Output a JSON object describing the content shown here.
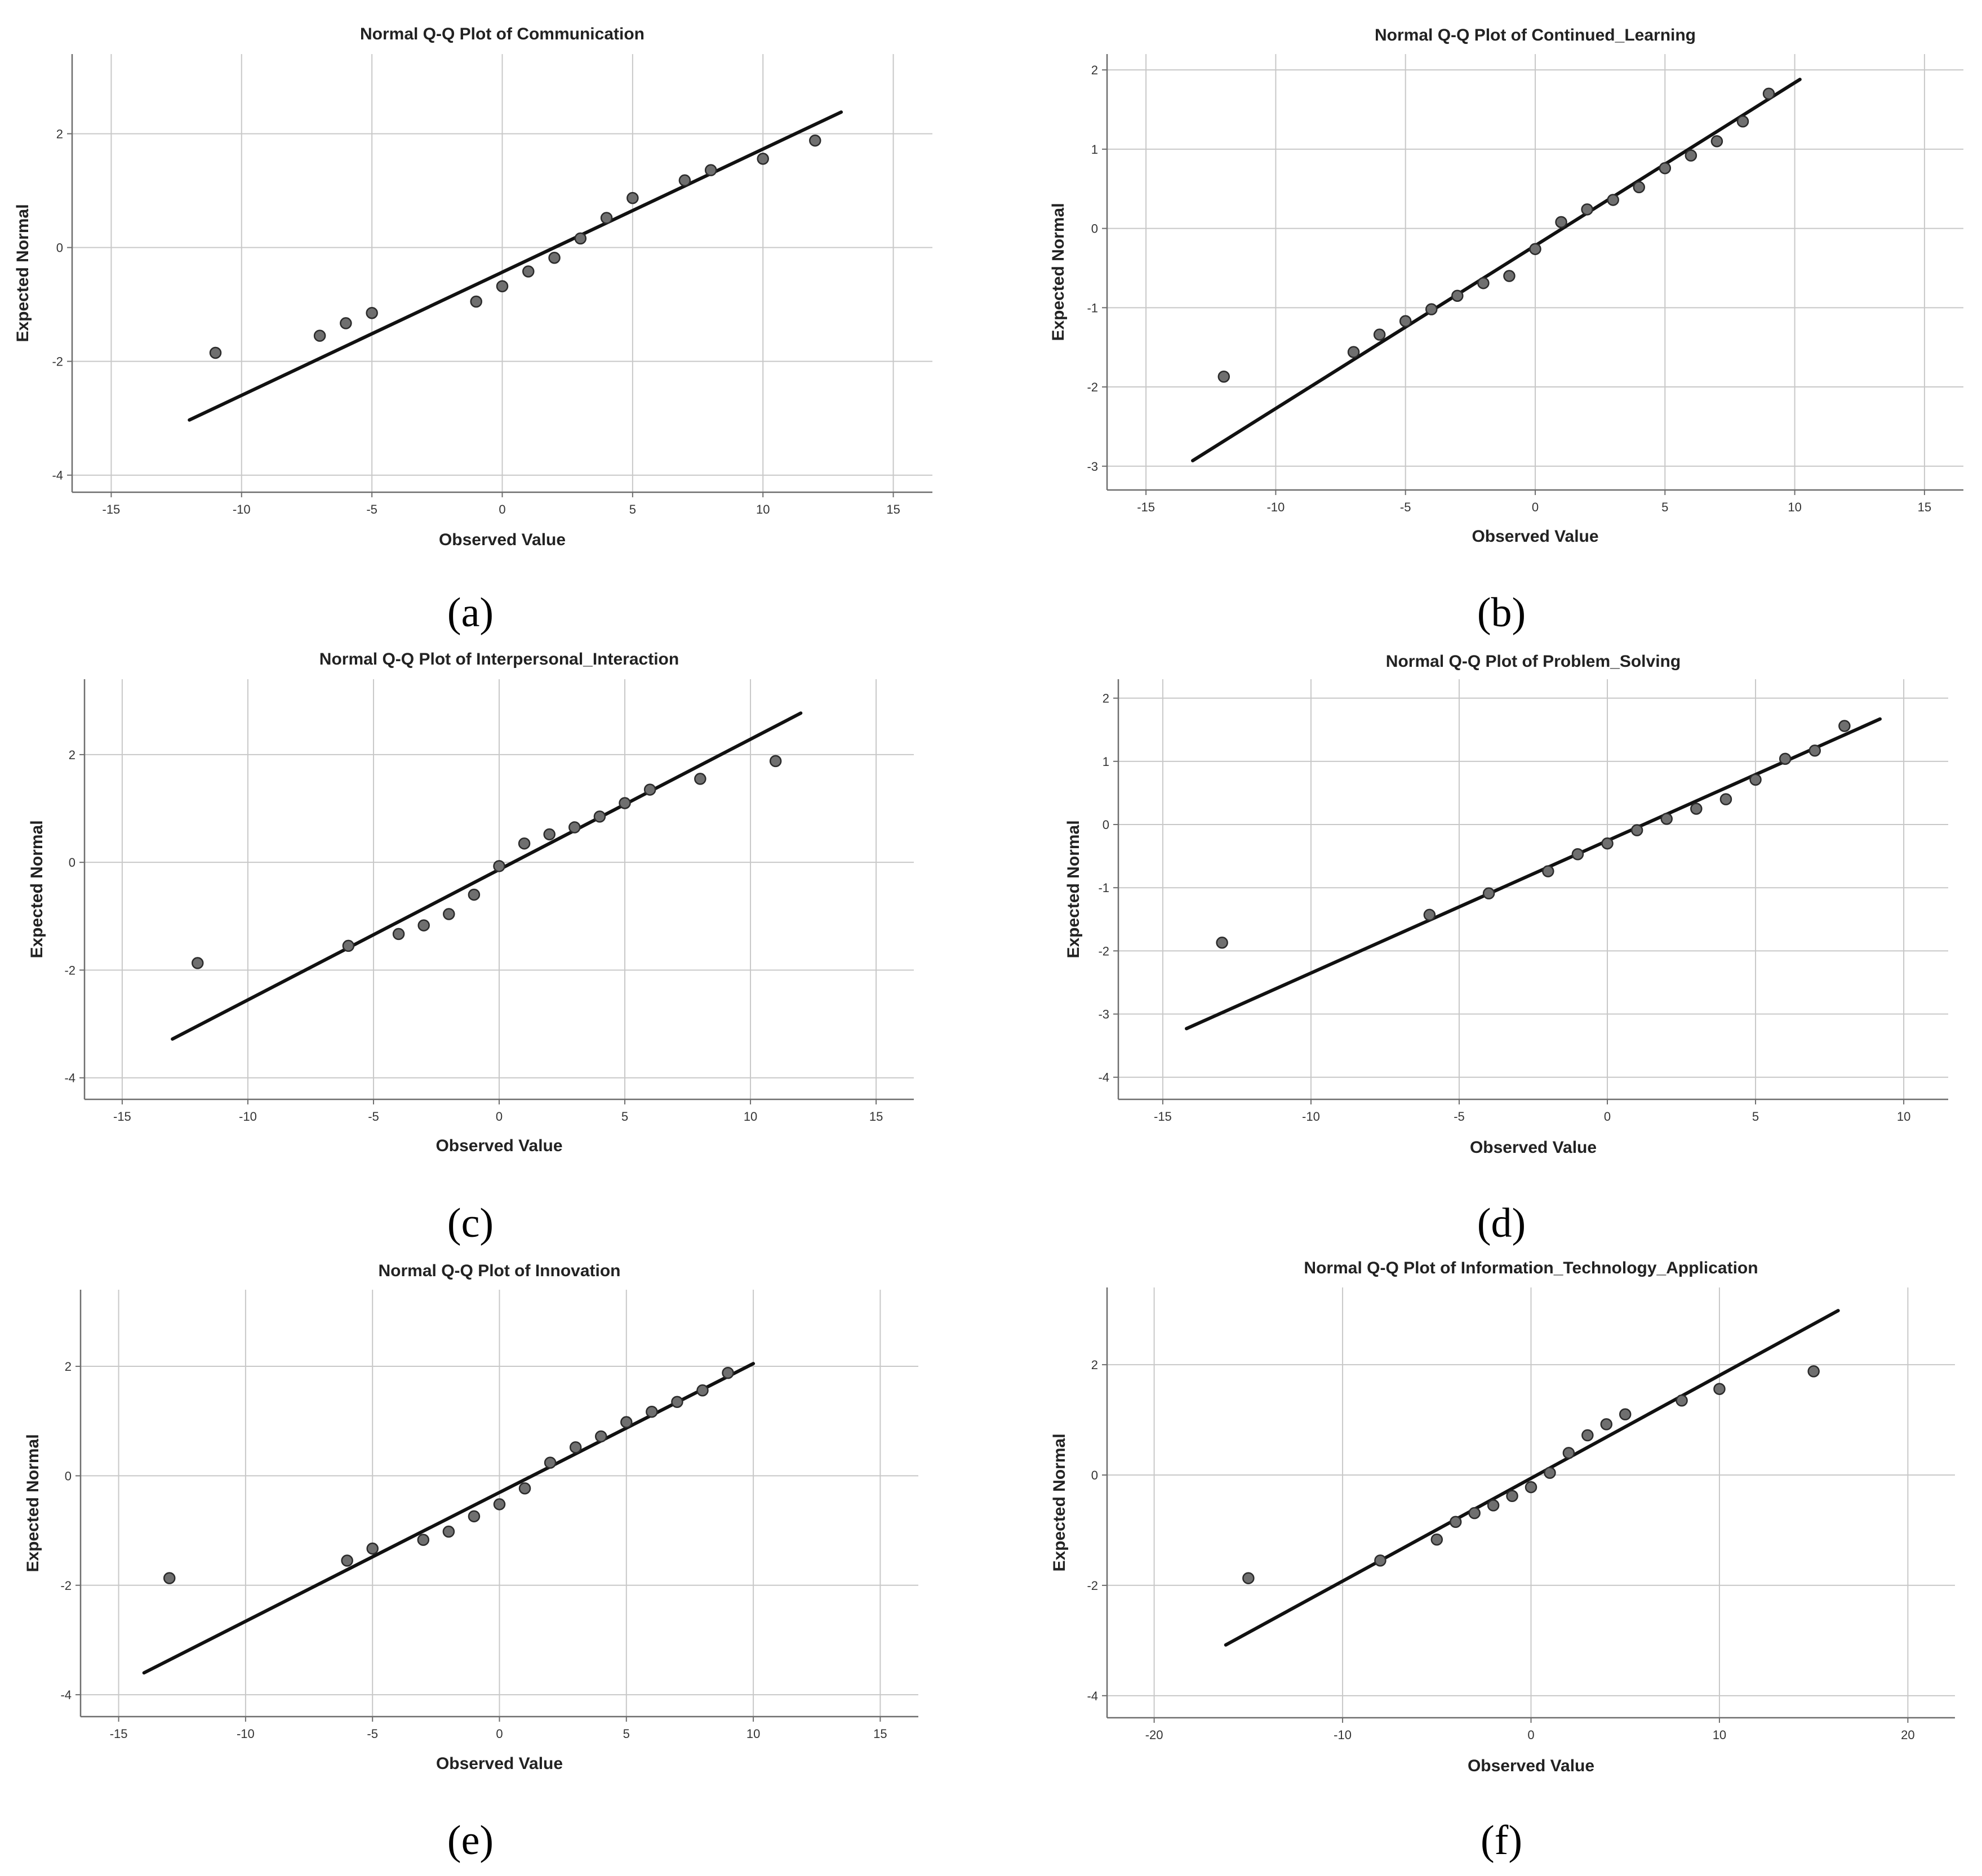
{
  "chart_data": [
    {
      "type": "scatter",
      "panel_label": "(a)",
      "title": "Normal Q-Q Plot of Communication",
      "xlabel": "Observed Value",
      "ylabel": "Expected Normal",
      "xlim": [
        -16.5,
        16.5
      ],
      "ylim": [
        -4.3,
        3.4
      ],
      "xticks": [
        -15,
        -10,
        -5,
        0,
        5,
        10,
        15
      ],
      "yticks": [
        -4,
        -2,
        0,
        2
      ],
      "grid": true,
      "points": [
        {
          "x": -11,
          "y": -1.85
        },
        {
          "x": -7,
          "y": -1.55
        },
        {
          "x": -6,
          "y": -1.33
        },
        {
          "x": -5,
          "y": -1.15
        },
        {
          "x": -1,
          "y": -0.95
        },
        {
          "x": 0,
          "y": -0.68
        },
        {
          "x": 1,
          "y": -0.42
        },
        {
          "x": 2,
          "y": -0.18
        },
        {
          "x": 3,
          "y": 0.16
        },
        {
          "x": 4,
          "y": 0.52
        },
        {
          "x": 5,
          "y": 0.87
        },
        {
          "x": 7,
          "y": 1.18
        },
        {
          "x": 8,
          "y": 1.36
        },
        {
          "x": 10,
          "y": 1.56
        },
        {
          "x": 12,
          "y": 1.88
        }
      ],
      "reference_line": {
        "x": [
          -12,
          13
        ],
        "y": [
          -3.03,
          2.38
        ]
      }
    },
    {
      "type": "scatter",
      "panel_label": "(b)",
      "title": "Normal Q-Q Plot of Continued_Learning",
      "xlabel": "Observed Value",
      "ylabel": "Expected Normal",
      "xlim": [
        -16.5,
        16.5
      ],
      "ylim": [
        -3.3,
        2.2
      ],
      "xticks": [
        -15,
        -10,
        -5,
        0,
        5,
        10,
        15
      ],
      "yticks": [
        -3,
        -2,
        -1,
        0,
        1,
        2
      ],
      "grid": true,
      "points": [
        {
          "x": -12,
          "y": -1.87
        },
        {
          "x": -7,
          "y": -1.56
        },
        {
          "x": -6,
          "y": -1.34
        },
        {
          "x": -5,
          "y": -1.17
        },
        {
          "x": -4,
          "y": -1.02
        },
        {
          "x": -3,
          "y": -0.85
        },
        {
          "x": -2,
          "y": -0.69
        },
        {
          "x": -1,
          "y": -0.6
        },
        {
          "x": 0,
          "y": -0.26
        },
        {
          "x": 1,
          "y": 0.08
        },
        {
          "x": 2,
          "y": 0.24
        },
        {
          "x": 3,
          "y": 0.36
        },
        {
          "x": 4,
          "y": 0.52
        },
        {
          "x": 5,
          "y": 0.76
        },
        {
          "x": 6,
          "y": 0.92
        },
        {
          "x": 7,
          "y": 1.1
        },
        {
          "x": 8,
          "y": 1.35
        },
        {
          "x": 9,
          "y": 1.7
        }
      ],
      "reference_line": {
        "x": [
          -13.2,
          10.2
        ],
        "y": [
          -2.93,
          1.88
        ]
      }
    },
    {
      "type": "scatter",
      "panel_label": "(c)",
      "title": "Normal Q-Q Plot of Interpersonal_Interaction",
      "xlabel": "Observed Value",
      "ylabel": "Expected Normal",
      "xlim": [
        -16.5,
        16.5
      ],
      "ylim": [
        -4.4,
        3.4
      ],
      "xticks": [
        -15,
        -10,
        -5,
        0,
        5,
        10,
        15
      ],
      "yticks": [
        -4,
        -2,
        0,
        2
      ],
      "grid": true,
      "points": [
        {
          "x": -12,
          "y": -1.87
        },
        {
          "x": -6,
          "y": -1.55
        },
        {
          "x": -4,
          "y": -1.33
        },
        {
          "x": -3,
          "y": -1.17
        },
        {
          "x": -2,
          "y": -0.96
        },
        {
          "x": -1,
          "y": -0.6
        },
        {
          "x": 0,
          "y": -0.07
        },
        {
          "x": 1,
          "y": 0.35
        },
        {
          "x": 2,
          "y": 0.52
        },
        {
          "x": 3,
          "y": 0.65
        },
        {
          "x": 4,
          "y": 0.85
        },
        {
          "x": 5,
          "y": 1.1
        },
        {
          "x": 6,
          "y": 1.35
        },
        {
          "x": 8,
          "y": 1.55
        },
        {
          "x": 11,
          "y": 1.88
        }
      ],
      "reference_line": {
        "x": [
          -13,
          12
        ],
        "y": [
          -3.28,
          2.77
        ]
      }
    },
    {
      "type": "scatter",
      "panel_label": "(d)",
      "title": "Normal Q-Q Plot of Problem_Solving",
      "xlabel": "Observed Value",
      "ylabel": "Expected Normal",
      "xlim": [
        -16.5,
        11.5
      ],
      "ylim": [
        -4.35,
        2.3
      ],
      "xticks": [
        -15,
        -10,
        -5,
        0,
        5,
        10
      ],
      "yticks": [
        -4,
        -3,
        -2,
        -1,
        0,
        1,
        2
      ],
      "grid": true,
      "points": [
        {
          "x": -13,
          "y": -1.87
        },
        {
          "x": -6,
          "y": -1.43
        },
        {
          "x": -4,
          "y": -1.09
        },
        {
          "x": -2,
          "y": -0.74
        },
        {
          "x": -1,
          "y": -0.47
        },
        {
          "x": 0,
          "y": -0.3
        },
        {
          "x": 1,
          "y": -0.09
        },
        {
          "x": 2,
          "y": 0.09
        },
        {
          "x": 3,
          "y": 0.25
        },
        {
          "x": 4,
          "y": 0.4
        },
        {
          "x": 5,
          "y": 0.71
        },
        {
          "x": 6,
          "y": 1.04
        },
        {
          "x": 7,
          "y": 1.17
        },
        {
          "x": 8,
          "y": 1.56
        }
      ],
      "reference_line": {
        "x": [
          -14.2,
          9.2
        ],
        "y": [
          -3.23,
          1.67
        ]
      }
    },
    {
      "type": "scatter",
      "panel_label": "(e)",
      "title": "Normal Q-Q Plot of Innovation",
      "xlabel": "Observed Value",
      "ylabel": "Expected Normal",
      "xlim": [
        -16.5,
        16.5
      ],
      "ylim": [
        -4.4,
        3.4
      ],
      "xticks": [
        -15,
        -10,
        -5,
        0,
        5,
        10,
        15
      ],
      "yticks": [
        -4,
        -2,
        0,
        2
      ],
      "grid": true,
      "points": [
        {
          "x": -13,
          "y": -1.87
        },
        {
          "x": -6,
          "y": -1.55
        },
        {
          "x": -5,
          "y": -1.33
        },
        {
          "x": -3,
          "y": -1.17
        },
        {
          "x": -2,
          "y": -1.02
        },
        {
          "x": -1,
          "y": -0.74
        },
        {
          "x": 0,
          "y": -0.52
        },
        {
          "x": 1,
          "y": -0.23
        },
        {
          "x": 2,
          "y": 0.24
        },
        {
          "x": 3,
          "y": 0.52
        },
        {
          "x": 4,
          "y": 0.72
        },
        {
          "x": 5,
          "y": 0.98
        },
        {
          "x": 6,
          "y": 1.17
        },
        {
          "x": 7,
          "y": 1.35
        },
        {
          "x": 8,
          "y": 1.56
        },
        {
          "x": 9,
          "y": 1.88
        }
      ],
      "reference_line": {
        "x": [
          -14,
          10
        ],
        "y": [
          -3.6,
          2.05
        ]
      }
    },
    {
      "type": "scatter",
      "panel_label": "(f)",
      "title": "Normal Q-Q Plot of Information_Technology_Application",
      "xlabel": "Observed Value",
      "ylabel": "Expected Normal",
      "xlim": [
        -22.5,
        22.5
      ],
      "ylim": [
        -4.4,
        3.4
      ],
      "xticks": [
        -20,
        -10,
        0,
        10,
        20
      ],
      "yticks": [
        -4,
        -2,
        0,
        2
      ],
      "grid": true,
      "points": [
        {
          "x": -15,
          "y": -1.87
        },
        {
          "x": -8,
          "y": -1.55
        },
        {
          "x": -5,
          "y": -1.17
        },
        {
          "x": -4,
          "y": -0.85
        },
        {
          "x": -3,
          "y": -0.69
        },
        {
          "x": -2,
          "y": -0.55
        },
        {
          "x": -1,
          "y": -0.38
        },
        {
          "x": 0,
          "y": -0.22
        },
        {
          "x": 1,
          "y": 0.04
        },
        {
          "x": 2,
          "y": 0.4
        },
        {
          "x": 3,
          "y": 0.72
        },
        {
          "x": 4,
          "y": 0.92
        },
        {
          "x": 5,
          "y": 1.1
        },
        {
          "x": 8,
          "y": 1.35
        },
        {
          "x": 10,
          "y": 1.56
        },
        {
          "x": 15,
          "y": 1.88
        }
      ],
      "reference_line": {
        "x": [
          -16.2,
          16.3
        ],
        "y": [
          -3.08,
          2.98
        ]
      }
    }
  ]
}
